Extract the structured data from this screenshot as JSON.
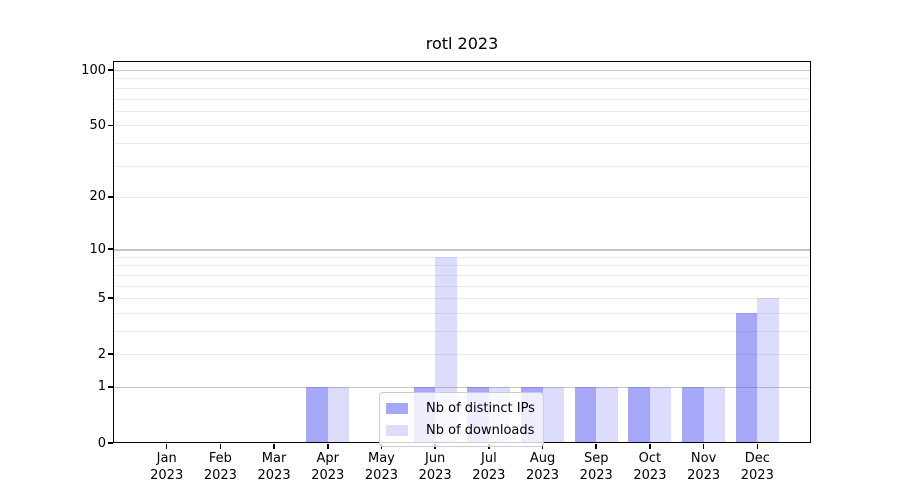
{
  "chart_data": {
    "type": "bar",
    "title": "rotl 2023",
    "categories": [
      "Jan 2023",
      "Feb 2023",
      "Mar 2023",
      "Apr 2023",
      "May 2023",
      "Jun 2023",
      "Jul 2023",
      "Aug 2023",
      "Sep 2023",
      "Oct 2023",
      "Nov 2023",
      "Dec 2023"
    ],
    "series": [
      {
        "name": "Nb of distinct IPs",
        "values": [
          0,
          0,
          0,
          1,
          0,
          1,
          1,
          1,
          1,
          1,
          1,
          4
        ],
        "color": "#5050f0",
        "alpha": 0.5
      },
      {
        "name": "Nb of downloads",
        "values": [
          0,
          0,
          0,
          1,
          0,
          9,
          1,
          1,
          1,
          1,
          1,
          5
        ],
        "color": "#5050f0",
        "alpha": 0.2
      }
    ],
    "xlabel": "",
    "ylabel": "",
    "yscale": "log1p",
    "ylim": [
      0,
      112
    ],
    "yticks": [
      0,
      1,
      2,
      5,
      10,
      20,
      50,
      100
    ],
    "grid": {
      "major": [
        1,
        10,
        100
      ],
      "minor": [
        2,
        3,
        4,
        5,
        6,
        7,
        8,
        9,
        20,
        30,
        40,
        50,
        60,
        70,
        80,
        90
      ]
    },
    "legend": {
      "position": "lower center"
    },
    "colors": {
      "grid_major": "#c6c6c6",
      "grid_minor": "#ebebeb",
      "axis": "#000000",
      "text": "#000000",
      "legend_border": "#cccccc",
      "background": "#ffffff"
    }
  }
}
